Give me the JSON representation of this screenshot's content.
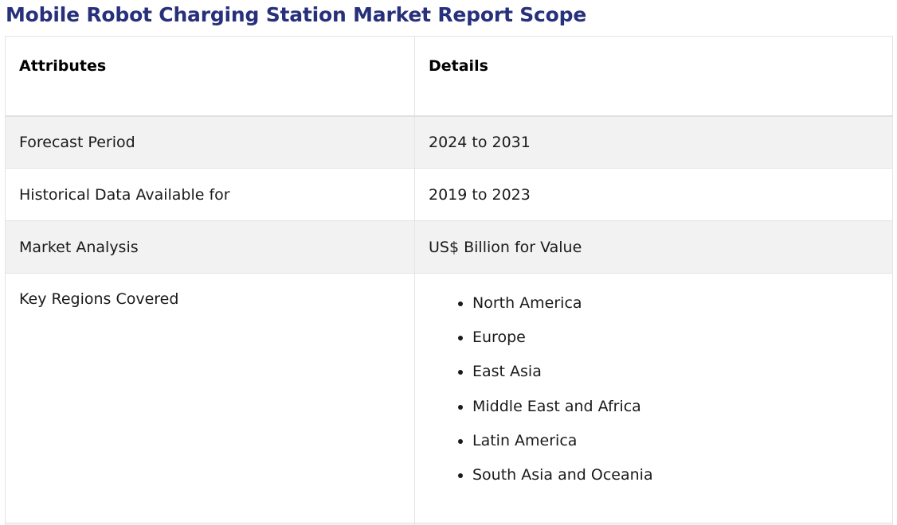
{
  "title": "Mobile Robot Charging Station Market Report Scope",
  "table": {
    "header": {
      "attributes": "Attributes",
      "details": "Details"
    },
    "rows": [
      {
        "attribute": "Forecast Period",
        "detail": "2024 to 2031"
      },
      {
        "attribute": "Historical Data Available for",
        "detail": "2019 to 2023"
      },
      {
        "attribute": "Market Analysis",
        "detail": "US$ Billion for Value"
      }
    ],
    "regions": {
      "attribute": "Key Regions Covered",
      "items": [
        "North America",
        "Europe",
        "East Asia",
        "Middle East and Africa",
        "Latin America",
        "South Asia and Oceania"
      ]
    }
  }
}
